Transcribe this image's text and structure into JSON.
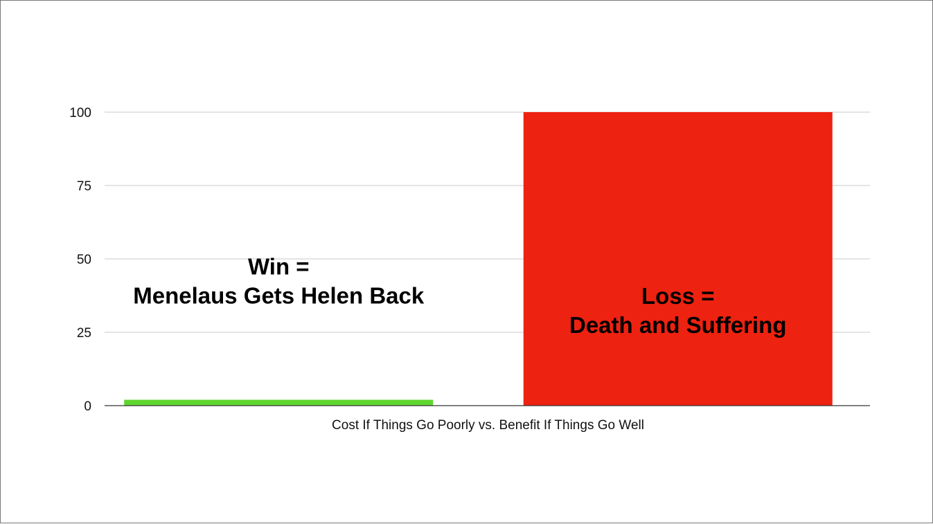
{
  "chart_data": {
    "type": "bar",
    "categories": [
      "Win",
      "Loss"
    ],
    "values": [
      2,
      100
    ],
    "colors": [
      "#5fd52e",
      "#ee2210"
    ],
    "xlabel": "Cost If Things Go Poorly vs. Benefit If Things Go Well",
    "ylabel": "",
    "ylim": [
      0,
      100
    ],
    "yticks": [
      0,
      25,
      50,
      75,
      100
    ],
    "grid": true,
    "legend": "none",
    "annotations": [
      {
        "lines": [
          "Win =",
          "Menelaus Gets Helen Back"
        ],
        "category": "Win",
        "y": 40
      },
      {
        "lines": [
          "Loss =",
          "Death and Suffering"
        ],
        "category": "Loss",
        "y": 30
      }
    ]
  }
}
